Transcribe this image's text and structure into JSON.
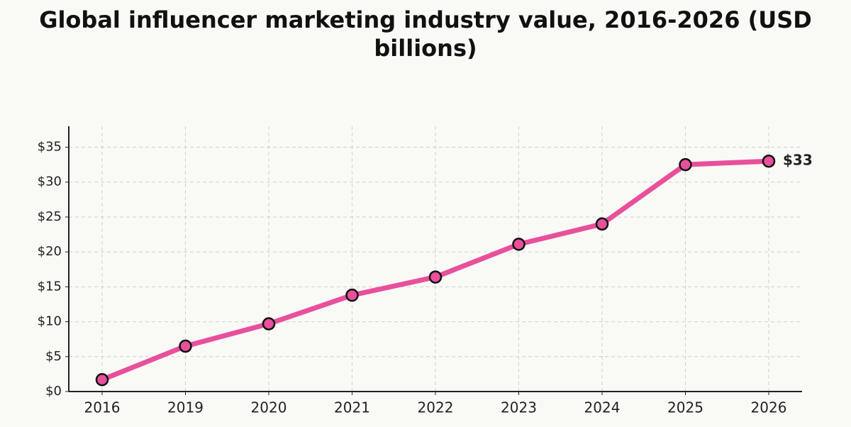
{
  "chart_data": {
    "type": "line",
    "title": "Global influencer marketing industry value, 2016-2026 (USD billions)",
    "categories": [
      "2016",
      "2019",
      "2020",
      "2021",
      "2022",
      "2023",
      "2024",
      "2025",
      "2026"
    ],
    "series": [
      {
        "color": "#e8509c",
        "values": [
          1.7,
          6.5,
          9.7,
          13.8,
          16.4,
          21.1,
          24.0,
          32.5,
          33.0
        ],
        "value_labels": [
          null,
          null,
          null,
          null,
          null,
          null,
          null,
          null,
          "$33"
        ]
      }
    ],
    "ylim": [
      0,
      38
    ],
    "yticks": [
      {
        "value": 0,
        "label": "$0"
      },
      {
        "value": 5,
        "label": "$5"
      },
      {
        "value": 10,
        "label": "$10"
      },
      {
        "value": 15,
        "label": "$15"
      },
      {
        "value": 20,
        "label": "$20"
      },
      {
        "value": 25,
        "label": "$25"
      },
      {
        "value": 30,
        "label": "$30"
      },
      {
        "value": 35,
        "label": "$35"
      }
    ],
    "grid": true
  }
}
